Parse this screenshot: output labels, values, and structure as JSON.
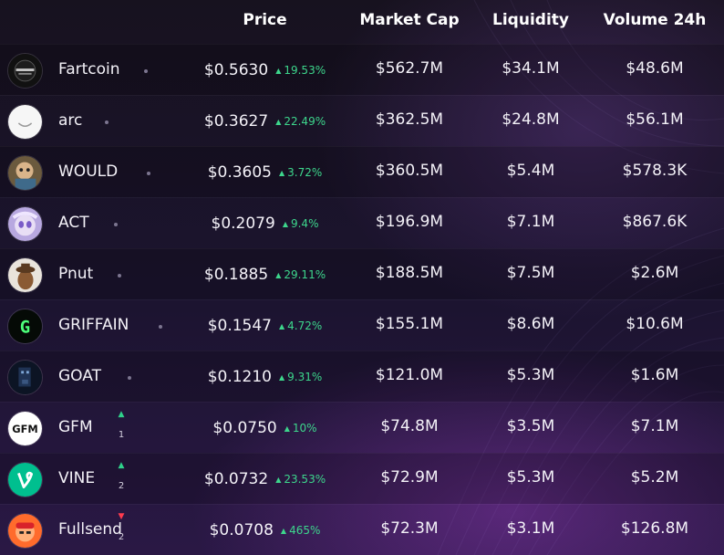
{
  "header": {
    "price": "Price",
    "market_cap": "Market Cap",
    "liquidity": "Liquidity",
    "volume_24h": "Volume 24h"
  },
  "colors": {
    "positive": "#3dd68c",
    "negative": "#ff3b4e",
    "rank_up": "#2fd18a"
  },
  "rows": [
    {
      "name": "Fartcoin",
      "price": "$0.5630",
      "change": "19.53%",
      "market_cap": "$562.7M",
      "liquidity": "$34.1M",
      "volume": "$48.6M",
      "rank_change": null,
      "icon": "fartcoin-logo-icon"
    },
    {
      "name": "arc",
      "price": "$0.3627",
      "change": "22.49%",
      "market_cap": "$362.5M",
      "liquidity": "$24.8M",
      "volume": "$56.1M",
      "rank_change": null,
      "icon": "arc-logo-icon"
    },
    {
      "name": "WOULD",
      "price": "$0.3605",
      "change": "3.72%",
      "market_cap": "$360.5M",
      "liquidity": "$5.4M",
      "volume": "$578.3K",
      "rank_change": null,
      "icon": "would-logo-icon"
    },
    {
      "name": "ACT",
      "price": "$0.2079",
      "change": "9.4%",
      "market_cap": "$196.9M",
      "liquidity": "$7.1M",
      "volume": "$867.6K",
      "rank_change": null,
      "icon": "act-logo-icon"
    },
    {
      "name": "Pnut",
      "price": "$0.1885",
      "change": "29.11%",
      "market_cap": "$188.5M",
      "liquidity": "$7.5M",
      "volume": "$2.6M",
      "rank_change": null,
      "icon": "pnut-logo-icon"
    },
    {
      "name": "GRIFFAIN",
      "price": "$0.1547",
      "change": "4.72%",
      "market_cap": "$155.1M",
      "liquidity": "$8.6M",
      "volume": "$10.6M",
      "rank_change": null,
      "icon": "griffain-logo-icon"
    },
    {
      "name": "GOAT",
      "price": "$0.1210",
      "change": "9.31%",
      "market_cap": "$121.0M",
      "liquidity": "$5.3M",
      "volume": "$1.6M",
      "rank_change": null,
      "icon": "goat-logo-icon"
    },
    {
      "name": "GFM",
      "price": "$0.0750",
      "change": "10%",
      "market_cap": "$74.8M",
      "liquidity": "$3.5M",
      "volume": "$7.1M",
      "rank_change": {
        "dir": "up",
        "value": "1"
      },
      "icon": "gfm-logo-icon"
    },
    {
      "name": "VINE",
      "price": "$0.0732",
      "change": "23.53%",
      "market_cap": "$72.9M",
      "liquidity": "$5.3M",
      "volume": "$5.2M",
      "rank_change": {
        "dir": "up",
        "value": "2"
      },
      "icon": "vine-logo-icon"
    },
    {
      "name": "Fullsend",
      "price": "$0.0708",
      "change": "465%",
      "market_cap": "$72.3M",
      "liquidity": "$3.1M",
      "volume": "$126.8M",
      "rank_change": {
        "dir": "down",
        "value": "2"
      },
      "icon": "fullsend-logo-icon"
    }
  ]
}
